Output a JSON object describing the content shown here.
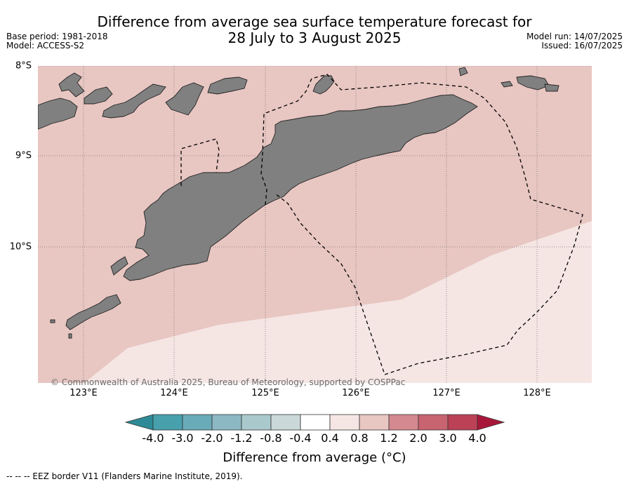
{
  "header": {
    "title_line1": "Difference from average sea surface temperature forecast for",
    "title_line2": "28 July to 3 August 2025",
    "base_period": "Base period: 1981-2018",
    "model": "Model: ACCESS-S2",
    "model_run": "Model run: 14/07/2025",
    "issued": "Issued: 16/07/2025"
  },
  "map": {
    "lat_labels": [
      "8°S",
      "9°S",
      "10°S"
    ],
    "lon_labels": [
      "123°E",
      "124°E",
      "125°E",
      "126°E",
      "127°E",
      "128°E"
    ],
    "copyright": "© Commonwealth of Australia 2025, Bureau of Meteorology, supported by COSPPac",
    "zones": [
      {
        "range": "0.8 to 1.2",
        "color": "#e8c6c2"
      },
      {
        "range": "0.4 to 0.8",
        "color": "#f5e6e4"
      }
    ],
    "land_color": "#808080"
  },
  "colorbar": {
    "labels": [
      "-4.0",
      "-3.0",
      "-2.0",
      "-1.2",
      "-0.8",
      "-0.4",
      "0.4",
      "0.8",
      "1.2",
      "2.0",
      "3.0",
      "4.0"
    ],
    "colors": [
      "#2e8a96",
      "#48a0ad",
      "#6aabb8",
      "#8cb8c4",
      "#aac9cc",
      "#cad8d9",
      "#ffffff",
      "#f5e6e4",
      "#e8c6c2",
      "#d4888f",
      "#c86470",
      "#bb4256",
      "#a8173a"
    ],
    "title": "Difference from average (°C)"
  },
  "footer": {
    "legend": "--  --  -- EEZ border V11 (Flanders Marine Institute, 2019)."
  }
}
